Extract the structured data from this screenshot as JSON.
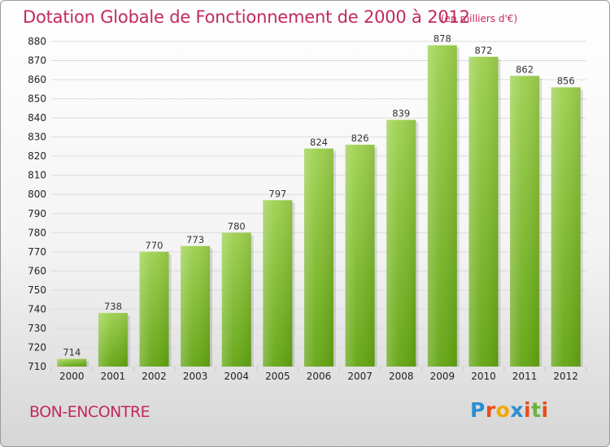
{
  "chart_data": {
    "type": "bar",
    "title": "Dotation Globale de Fonctionnement de 2000 à 2012",
    "subtitle": "(en milliers d'€)",
    "categories": [
      "2000",
      "2001",
      "2002",
      "2003",
      "2004",
      "2005",
      "2006",
      "2007",
      "2008",
      "2009",
      "2010",
      "2011",
      "2012"
    ],
    "values": [
      714,
      738,
      770,
      773,
      780,
      797,
      824,
      826,
      839,
      878,
      872,
      862,
      856
    ],
    "ylim": [
      710,
      880
    ],
    "yticks": [
      710,
      720,
      730,
      740,
      750,
      760,
      770,
      780,
      790,
      800,
      810,
      820,
      830,
      840,
      850,
      860,
      870,
      880
    ],
    "grid": true,
    "bar_color": "#8cc83c",
    "xlabel": "",
    "ylabel": ""
  },
  "footer": {
    "city": "BON-ENCONTRE",
    "logo": {
      "letters": [
        "P",
        "r",
        "o",
        "x",
        "i",
        "t",
        "i"
      ],
      "colors": [
        "#2a8fd4",
        "#e94e1b",
        "#f2a900",
        "#2a8fd4",
        "#e94e1b",
        "#6cb33f",
        "#e94e1b"
      ]
    }
  }
}
